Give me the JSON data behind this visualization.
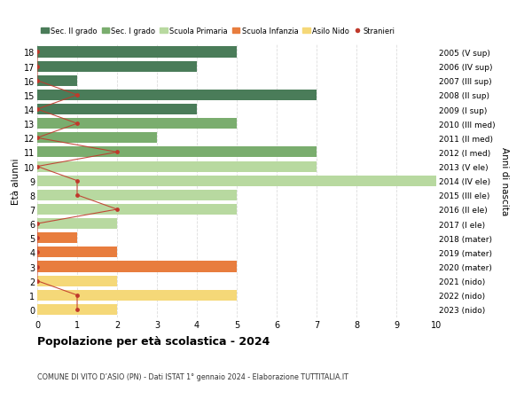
{
  "ages": [
    18,
    17,
    16,
    15,
    14,
    13,
    12,
    11,
    10,
    9,
    8,
    7,
    6,
    5,
    4,
    3,
    2,
    1,
    0
  ],
  "years_labels": [
    "2005 (V sup)",
    "2006 (IV sup)",
    "2007 (III sup)",
    "2008 (II sup)",
    "2009 (I sup)",
    "2010 (III med)",
    "2011 (II med)",
    "2012 (I med)",
    "2013 (V ele)",
    "2014 (IV ele)",
    "2015 (III ele)",
    "2016 (II ele)",
    "2017 (I ele)",
    "2018 (mater)",
    "2019 (mater)",
    "2020 (mater)",
    "2021 (nido)",
    "2022 (nido)",
    "2023 (nido)"
  ],
  "bar_values": [
    5,
    4,
    1,
    7,
    4,
    5,
    3,
    7,
    7,
    10,
    5,
    5,
    2,
    1,
    2,
    5,
    2,
    5,
    2
  ],
  "bar_colors": [
    "#4a7c59",
    "#4a7c59",
    "#4a7c59",
    "#4a7c59",
    "#4a7c59",
    "#7aad6e",
    "#7aad6e",
    "#7aad6e",
    "#b8d9a0",
    "#b8d9a0",
    "#b8d9a0",
    "#b8d9a0",
    "#b8d9a0",
    "#e87d3e",
    "#e87d3e",
    "#e87d3e",
    "#f5d878",
    "#f5d878",
    "#f5d878"
  ],
  "stranieri_x": [
    0,
    0,
    0,
    1,
    0,
    1,
    0,
    2,
    0,
    1,
    1,
    2,
    0,
    0,
    0,
    0,
    0,
    1,
    1
  ],
  "legend_labels": [
    "Sec. II grado",
    "Sec. I grado",
    "Scuola Primaria",
    "Scuola Infanzia",
    "Asilo Nido",
    "Stranieri"
  ],
  "legend_colors": [
    "#4a7c59",
    "#7aad6e",
    "#b8d9a0",
    "#e87d3e",
    "#f5d878",
    "#c0392b"
  ],
  "title": "Popolazione per età scolastica - 2024",
  "subtitle": "COMUNE DI VITO D’ASIO (PN) - Dati ISTAT 1° gennaio 2024 - Elaborazione TUTTITALIA.IT",
  "xlabel_left": "Età alunni",
  "xlabel_right": "Anni di nascita",
  "xlim": [
    0,
    10
  ],
  "color_stranieri": "#c0392b",
  "grid_color": "#dddddd",
  "bg_color": "#ffffff"
}
